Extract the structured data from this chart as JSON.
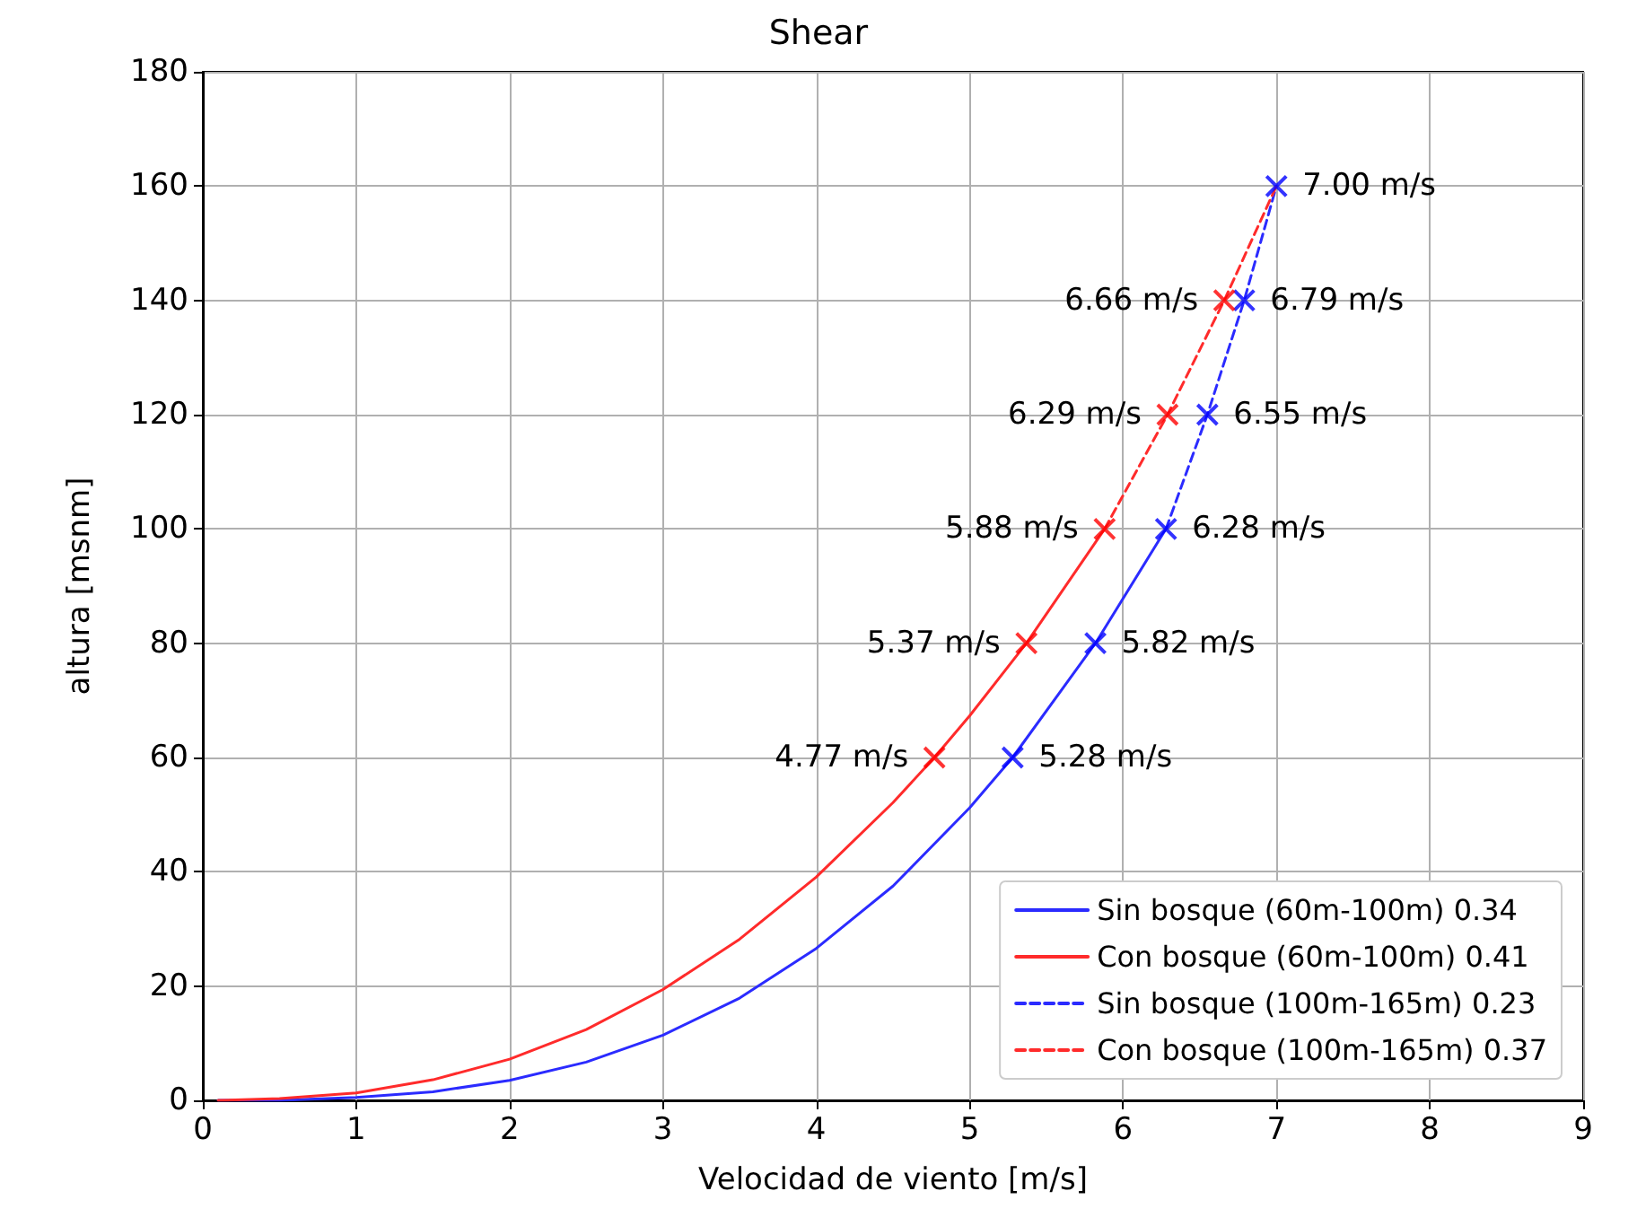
{
  "chart_data": {
    "type": "line",
    "title": "Shear",
    "xlabel": "Velocidad de viento [m/s]",
    "ylabel": "altura [msnm]",
    "xlim": [
      0,
      9
    ],
    "xticks": [
      0,
      1,
      2,
      3,
      4,
      5,
      6,
      7,
      8,
      9
    ],
    "ylim": [
      0,
      180
    ],
    "yticks": [
      0,
      20,
      40,
      60,
      80,
      100,
      120,
      140,
      160,
      180
    ],
    "grid": true,
    "legend": "bottom right",
    "marker": "none",
    "series": [
      {
        "name": "Sin bosque (60m-100m) 0.34",
        "color": "#2b2bff",
        "line_style": "solid",
        "x": [
          0.1,
          0.5,
          1,
          1.5,
          2,
          2.5,
          3,
          3.5,
          4,
          4.5,
          5,
          5.28,
          5.82,
          6.28
        ],
        "values": [
          0,
          0,
          0.5,
          1.5,
          3.5,
          6.7,
          11.4,
          17.9,
          26.6,
          37.5,
          51.2,
          60,
          80,
          100
        ]
      },
      {
        "name": "Con bosque (60m-100m) 0.41",
        "color": "#ff2b2b",
        "line_style": "solid",
        "x": [
          0.1,
          0.5,
          1,
          1.5,
          2,
          2.5,
          3,
          3.5,
          4,
          4.5,
          4.77,
          5,
          5.37,
          5.88
        ],
        "values": [
          0,
          0.3,
          1.3,
          3.6,
          7.2,
          12.4,
          19.4,
          28.2,
          39.1,
          52.1,
          60,
          67.3,
          80,
          100
        ]
      },
      {
        "name": "Sin bosque (100m-165m) 0.23",
        "color": "#2b2bff",
        "line_style": "dashed",
        "x": [
          6.28,
          6.55,
          6.79,
          7.0
        ],
        "values": [
          100,
          120,
          140,
          160
        ]
      },
      {
        "name": "Con bosque (100m-165m) 0.37",
        "color": "#ff2b2b",
        "line_style": "dashed",
        "x": [
          5.88,
          6.29,
          6.66,
          7.0
        ],
        "values": [
          100,
          120,
          140,
          160
        ]
      },
      {
        "type": "scatter",
        "marker": "cross",
        "color": "#0000ff",
        "x": [
          5.28,
          5.82,
          6.28,
          6.55,
          6.79,
          7.0
        ],
        "values": [
          60,
          80,
          100,
          120,
          140,
          160
        ]
      },
      {
        "type": "scatter",
        "marker": "cross",
        "color": "#ff0000",
        "x": [
          4.77,
          5.37,
          5.88,
          6.29,
          6.66
        ],
        "values": [
          60,
          80,
          100,
          120,
          140
        ]
      }
    ],
    "annotations": [
      {
        "text": "5.28 m/s",
        "x": 5.28,
        "y": 60
      },
      {
        "text": "5.82 m/s",
        "x": 5.82,
        "y": 80
      },
      {
        "text": "6.28 m/s",
        "x": 6.28,
        "y": 100
      },
      {
        "text": "6.55 m/s",
        "x": 6.55,
        "y": 120
      },
      {
        "text": "6.79 m/s",
        "x": 6.79,
        "y": 140
      },
      {
        "text": "7.00 m/s",
        "x": 7.0,
        "y": 160
      },
      {
        "text": "4.77 m/s",
        "x": 4.77,
        "y": 60
      },
      {
        "text": "5.37 m/s",
        "x": 5.37,
        "y": 80
      },
      {
        "text": "5.88 m/s",
        "x": 5.88,
        "y": 100
      },
      {
        "text": "6.29 m/s",
        "x": 6.29,
        "y": 120
      },
      {
        "text": "6.66 m/s",
        "x": 6.66,
        "y": 140
      }
    ]
  }
}
